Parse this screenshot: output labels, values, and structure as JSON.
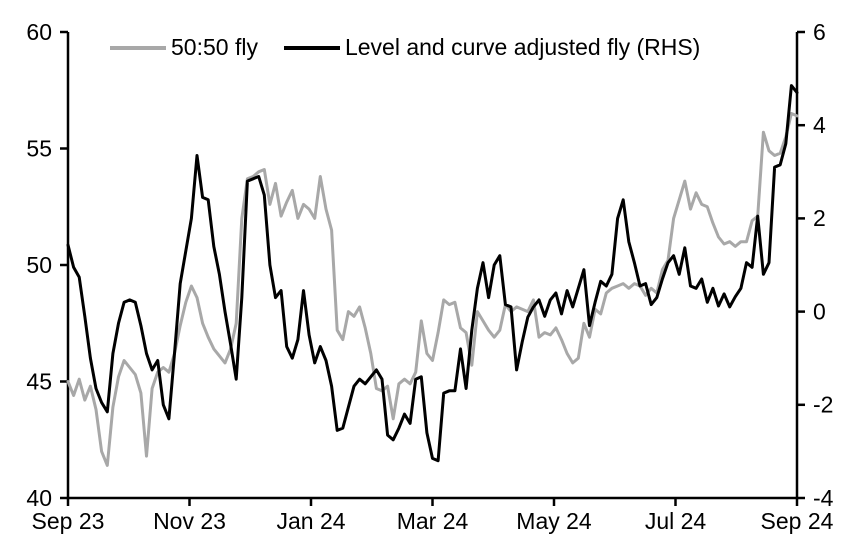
{
  "chart_data": {
    "type": "line",
    "title": "",
    "xlabel": "",
    "ylabel_left": "",
    "ylabel_right": "",
    "grid": false,
    "legend_position": "top",
    "x_axis": {
      "tick_labels": [
        "Sep 23",
        "Nov 23",
        "Jan 24",
        "Mar 24",
        "May 24",
        "Jul 24",
        "Sep 24"
      ]
    },
    "left_axis": {
      "min": 40,
      "max": 60,
      "ticks": [
        60,
        55,
        50,
        45,
        40
      ]
    },
    "right_axis": {
      "min": -4,
      "max": 6,
      "ticks": [
        6,
        4,
        2,
        0,
        -2,
        -4
      ]
    },
    "axis_color": "#000000",
    "legend": [
      {
        "label": "50:50 fly",
        "color": "#a8a8a8"
      },
      {
        "label": "Level and curve adjusted fly (RHS)",
        "color": "#000000"
      }
    ],
    "series": [
      {
        "name": "50:50 fly",
        "axis": "left",
        "color": "#a8a8a8",
        "line_width": 3,
        "values": [
          45.0,
          44.4,
          45.1,
          44.2,
          44.8,
          43.8,
          42.0,
          41.4,
          43.9,
          45.2,
          45.9,
          45.6,
          45.3,
          44.5,
          41.8,
          44.7,
          45.4,
          45.6,
          45.4,
          46.2,
          47.4,
          48.4,
          49.1,
          48.6,
          47.5,
          46.9,
          46.4,
          46.1,
          45.8,
          46.4,
          47.5,
          52.0,
          53.7,
          53.8,
          54.0,
          54.1,
          52.6,
          53.5,
          52.1,
          52.7,
          53.2,
          52.0,
          52.6,
          52.4,
          52.0,
          53.8,
          52.4,
          51.5,
          47.2,
          46.8,
          48.0,
          47.8,
          48.2,
          47.3,
          46.2,
          44.7,
          44.6,
          44.8,
          43.4,
          44.9,
          45.1,
          44.9,
          45.4,
          47.6,
          46.2,
          45.9,
          47.1,
          48.5,
          48.3,
          48.4,
          47.3,
          47.1,
          45.7,
          48.0,
          47.6,
          47.2,
          46.9,
          47.2,
          48.3,
          48.0,
          48.2,
          48.1,
          48.0,
          48.5,
          46.9,
          47.1,
          47.0,
          47.3,
          46.8,
          46.2,
          45.8,
          46.0,
          47.5,
          46.9,
          48.1,
          47.9,
          48.8,
          49.0,
          49.1,
          49.2,
          49.0,
          49.2,
          49.1,
          48.7,
          49.0,
          48.8,
          49.8,
          50.2,
          52.0,
          52.8,
          53.6,
          52.4,
          53.1,
          52.6,
          52.5,
          51.8,
          51.2,
          50.9,
          51.0,
          50.8,
          51.0,
          51.0,
          51.9,
          52.1,
          55.7,
          54.9,
          54.7,
          54.8,
          55.5,
          56.5,
          56.4
        ]
      },
      {
        "name": "Level and curve adjusted fly (RHS)",
        "axis": "right",
        "color": "#000000",
        "line_width": 3,
        "values": [
          1.43,
          0.95,
          0.74,
          -0.1,
          -1.0,
          -1.65,
          -1.95,
          -2.15,
          -0.9,
          -0.25,
          0.2,
          0.25,
          0.2,
          -0.3,
          -0.9,
          -1.25,
          -1.05,
          -2.0,
          -2.3,
          -0.9,
          0.6,
          1.3,
          2.0,
          3.35,
          2.45,
          2.4,
          1.4,
          0.8,
          0.0,
          -0.7,
          -1.45,
          0.3,
          2.8,
          2.85,
          2.9,
          2.5,
          1.0,
          0.3,
          0.45,
          -0.75,
          -1.0,
          -0.6,
          0.45,
          -0.5,
          -1.1,
          -0.75,
          -1.05,
          -1.6,
          -2.55,
          -2.5,
          -2.05,
          -1.6,
          -1.45,
          -1.55,
          -1.4,
          -1.25,
          -1.45,
          -2.65,
          -2.75,
          -2.5,
          -2.2,
          -2.4,
          -1.45,
          -1.4,
          -2.6,
          -3.15,
          -3.2,
          -1.75,
          -1.7,
          -1.7,
          -0.8,
          -1.65,
          -0.4,
          0.5,
          1.05,
          0.3,
          1.0,
          1.2,
          0.15,
          0.1,
          -1.25,
          -0.65,
          -0.12,
          0.1,
          0.25,
          -0.1,
          0.25,
          0.4,
          -0.05,
          0.45,
          0.1,
          0.5,
          0.9,
          -0.3,
          0.2,
          0.65,
          0.55,
          0.8,
          2.0,
          2.4,
          1.5,
          1.05,
          0.55,
          0.6,
          0.15,
          0.3,
          0.7,
          1.05,
          1.2,
          0.8,
          1.37,
          0.55,
          0.5,
          0.7,
          0.2,
          0.5,
          0.12,
          0.38,
          0.1,
          0.32,
          0.5,
          1.05,
          0.95,
          2.05,
          0.8,
          1.05,
          3.1,
          3.15,
          3.6,
          4.85,
          4.7
        ]
      }
    ]
  }
}
